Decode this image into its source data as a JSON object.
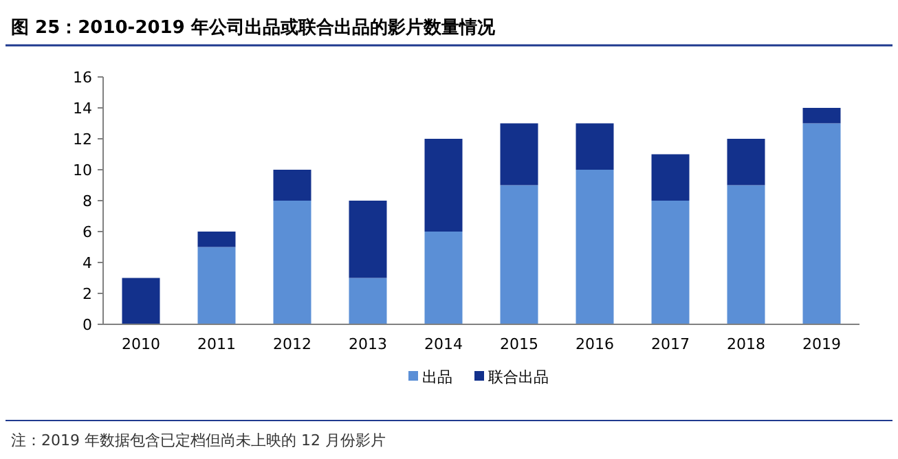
{
  "chart_data": {
    "type": "bar",
    "stacked": true,
    "title": "图 25：2010-2019 年公司出品或联合出品的影片数量情况",
    "categories": [
      "2010",
      "2011",
      "2012",
      "2013",
      "2014",
      "2015",
      "2016",
      "2017",
      "2018",
      "2019"
    ],
    "series": [
      {
        "name": "出品",
        "color": "#5b8fd6",
        "values": [
          0,
          5,
          8,
          3,
          6,
          9,
          10,
          8,
          9,
          13
        ]
      },
      {
        "name": "联合出品",
        "color": "#13318c",
        "values": [
          3,
          1,
          2,
          5,
          6,
          4,
          3,
          3,
          3,
          1
        ]
      }
    ],
    "ylim": [
      0,
      16
    ],
    "yticks": [
      0,
      2,
      4,
      6,
      8,
      10,
      12,
      14,
      16
    ],
    "legend": "bottom",
    "grid": false,
    "annotations": [
      "注：2019 年数据包含已定档但尚未上映的 12 月份影片"
    ]
  }
}
